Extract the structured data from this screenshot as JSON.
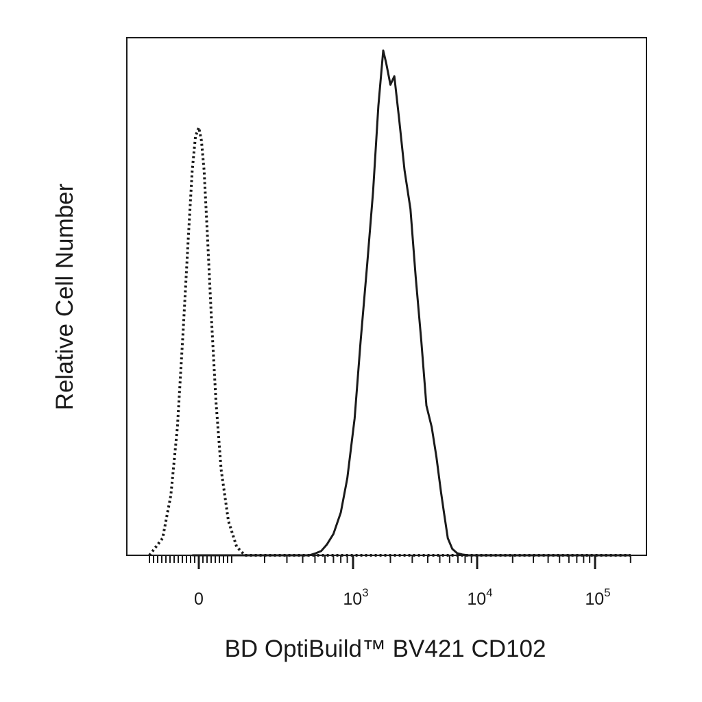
{
  "chart_data": {
    "type": "line",
    "title": "",
    "xlabel": "BD OptiBuild™ BV421 CD102",
    "ylabel": "Relative Cell Number",
    "x_scale": "biexponential",
    "xlim": [
      -150,
      200000
    ],
    "ylim": [
      0,
      1.21
    ],
    "grid": false,
    "legend": "none",
    "x_ticks": [
      {
        "value": 0,
        "label": "0",
        "sup": ""
      },
      {
        "value": 1000,
        "label": "10",
        "sup": "3"
      },
      {
        "value": 10000,
        "label": "10",
        "sup": "4"
      },
      {
        "value": 100000,
        "label": "10",
        "sup": "5"
      }
    ],
    "series": [
      {
        "name": "",
        "style": "dotted",
        "color": "#1a1a1a",
        "x": [
          -150,
          -110,
          -85,
          -65,
          -48,
          -32,
          -20,
          -10,
          0,
          8,
          16,
          26,
          38,
          52,
          68,
          90,
          115,
          140,
          200,
          1000,
          10000,
          200000
        ],
        "y": [
          0,
          0.04,
          0.14,
          0.3,
          0.52,
          0.74,
          0.9,
          0.98,
          1.0,
          0.97,
          0.9,
          0.75,
          0.56,
          0.36,
          0.2,
          0.08,
          0.02,
          0,
          0,
          0,
          0,
          0
        ]
      },
      {
        "name": "",
        "style": "solid",
        "color": "#1a1a1a",
        "x": [
          -20,
          200,
          450,
          510,
          560,
          620,
          700,
          800,
          900,
          1030,
          1150,
          1300,
          1450,
          1600,
          1750,
          1850,
          2000,
          2150,
          2350,
          2600,
          2900,
          3200,
          3550,
          3900,
          4300,
          4700,
          5100,
          5400,
          5800,
          6300,
          6900,
          7600,
          8500,
          10000,
          200000
        ],
        "y": [
          0,
          0,
          0,
          0.005,
          0.01,
          0.025,
          0.05,
          0.1,
          0.18,
          0.32,
          0.5,
          0.68,
          0.85,
          1.05,
          1.18,
          1.15,
          1.1,
          1.12,
          1.02,
          0.9,
          0.81,
          0.65,
          0.5,
          0.35,
          0.3,
          0.23,
          0.15,
          0.1,
          0.04,
          0.015,
          0.005,
          0.002,
          0,
          0,
          0
        ]
      }
    ]
  }
}
